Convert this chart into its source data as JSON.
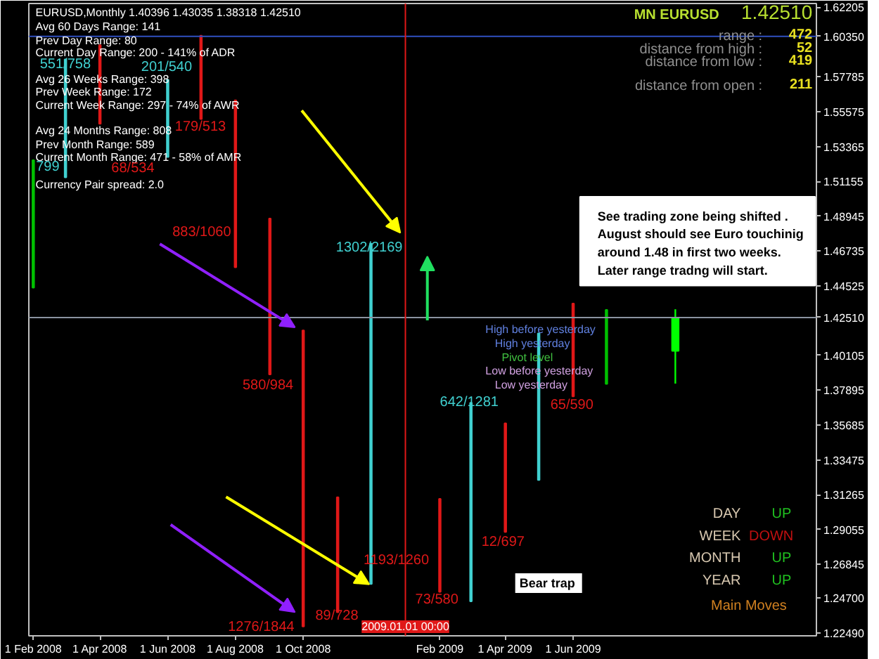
{
  "chart_data": {
    "type": "bar",
    "title": "EURUSD,Monthly  1.40396 1.43035 1.38318 1.42510",
    "x": [
      "2008-02",
      "2008-03",
      "2008-04",
      "2008-06",
      "2008-07",
      "2008-08",
      "2008-09",
      "2008-10",
      "2008-11",
      "2008-12",
      "2009-02",
      "2009-03",
      "2009-04",
      "2009-05",
      "2009-06",
      "2009-07"
    ],
    "series": [
      {
        "base": [
          1.444,
          1.514,
          1.548,
          1.527,
          1.551,
          1.457,
          1.389,
          1.229,
          1.238,
          1.256,
          1.251,
          1.245,
          1.289,
          1.322,
          1.375,
          1.383
        ],
        "values": [
          0.081,
          0.075,
          0.05,
          0.049,
          0.053,
          0.106,
          0.099,
          0.188,
          0.073,
          0.216,
          0.059,
          0.126,
          0.069,
          0.093,
          0.059,
          0.047
        ],
        "colors": [
          "#00c000",
          "#40d0d0",
          "#e01818",
          "#40d0d0",
          "#e01818",
          "#e01818",
          "#e01818",
          "#e01818",
          "#e01818",
          "#40d0d0",
          "#e01818",
          "#40d0d0",
          "#e01818",
          "#40d0d0",
          "#e01818",
          "#00c000"
        ]
      },
      {
        "type": "candlestick",
        "x": [
          "2009-09"
        ],
        "ohlc": [
          [
            1.40396,
            1.43035,
            1.38318,
            1.4251
          ]
        ],
        "color": "#00ff00"
      }
    ],
    "xlim": [
      "2008-01-28",
      "2010-01-06"
    ],
    "xticks": [
      {
        "value": "2008-02-01",
        "label": "1 Feb 2008"
      },
      {
        "value": "2008-04-01",
        "label": "1 Apr 2008"
      },
      {
        "value": "2008-06-01",
        "label": "1 Jun 2008"
      },
      {
        "value": "2008-08-01",
        "label": "1 Aug 2008"
      },
      {
        "value": "2008-10-01",
        "label": "1 Oct 2008"
      },
      {
        "value": "2009-02-01",
        "label": "Feb 2009"
      },
      {
        "value": "2009-04-01",
        "label": "1 Apr 2009"
      },
      {
        "value": "2009-06-01",
        "label": "1 Jun 2009"
      }
    ],
    "ylim": [
      1.2231,
      1.6244
    ],
    "yticks": [
      1.62205,
      {
        "value": 1.6035,
        "label": "1.60350"
      },
      1.57785,
      1.55575,
      1.53365,
      1.51155,
      1.48945,
      1.46735,
      1.44525,
      {
        "value": 1.4251,
        "label": "1.42510"
      },
      1.40105,
      1.37895,
      1.35685,
      1.33475,
      1.31265,
      1.29055,
      1.26845,
      {
        "value": 1.247,
        "label": "1.24700"
      },
      {
        "value": 1.2249,
        "label": "1.22490"
      }
    ],
    "ref_lines": [
      {
        "axis": "y",
        "value": 1.6035,
        "color": "#3050c0"
      },
      {
        "axis": "y",
        "value": 1.4251,
        "color": "#8a93a0"
      },
      {
        "axis": "x",
        "value": "2009-01-01",
        "color": "#e01818",
        "label": "2009.01.01 00:00"
      }
    ],
    "grid": false,
    "annotations": [
      "Avg 60 Days Range: 141",
      "Prev Day Range: 80",
      "Current Day Range: 200 - 141% of ADR",
      "Avg 26 Weeks Range: 398",
      "Prev Week Range: 172",
      "Current Week Range: 297 - 74% of AWR",
      "Avg 24 Months Range: 808",
      "Prev Month Range: 589",
      "Current Month Range: 471 - 58% of AMR",
      "Currency Pair spread: 2.0",
      "MN EURUSD",
      "1.42510",
      "range :",
      "472",
      "distance from high :",
      "52",
      "distance from low :",
      "419",
      "distance from open :",
      "211",
      "See trading zone being shifted .",
      "August should see Euro touchinig",
      "around 1.48 in first two weeks.",
      "Later range tradng will start.",
      "Bear trap",
      "DAY",
      "UP",
      "WEEK",
      "DOWN",
      "MONTH",
      "UP",
      "YEAR",
      "UP",
      "Main Moves",
      "High before yesterday",
      "High yesterday",
      "Pivot level",
      "Low before yesterday",
      "Low yesterday",
      "799",
      "551/758",
      "68/534",
      "201/540",
      "179/513",
      "883/1060",
      "580/984",
      "1302/2169",
      "642/1281",
      "65/590",
      "12/697",
      "1193/1260",
      "73/580",
      "89/728",
      "1276/1844"
    ]
  }
}
